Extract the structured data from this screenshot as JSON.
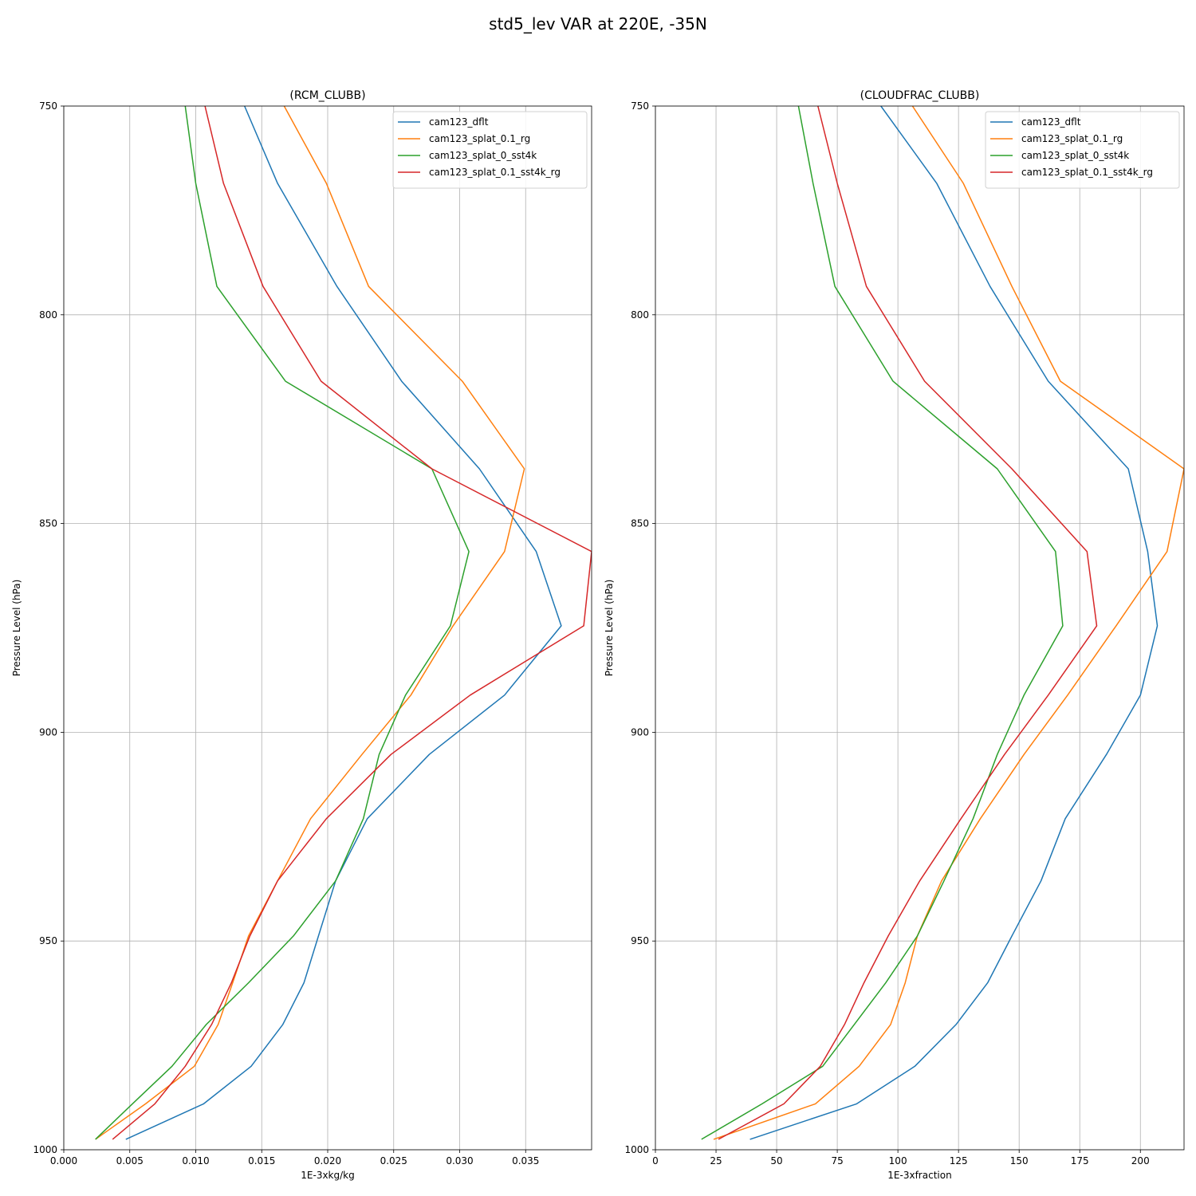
{
  "figure": {
    "suptitle": "std5_lev VAR at 220E, -35N"
  },
  "chart_data": [
    {
      "type": "line",
      "title": "(RCM_CLUBB)",
      "xlabel": "1E-3xkg/kg",
      "ylabel": "Pressure Level (hPa)",
      "xlim": [
        0,
        0.04
      ],
      "ylim": [
        1000,
        750
      ],
      "xticks": [
        0,
        0.005,
        0.01,
        0.015,
        0.02,
        0.025,
        0.03,
        0.035
      ],
      "xtick_labels": [
        "0.000",
        "0.005",
        "0.010",
        "0.015",
        "0.020",
        "0.025",
        "0.030",
        "0.035"
      ],
      "yticks": [
        750,
        800,
        850,
        900,
        950,
        1000
      ],
      "ytick_labels": [
        "750",
        "800",
        "850",
        "900",
        "950",
        "1000"
      ],
      "grid": true,
      "legend_position": "top-right",
      "y": [
        750,
        768.5,
        793.2,
        815.9,
        836.9,
        856.7,
        874.5,
        891.1,
        905.3,
        920.7,
        935.6,
        948.8,
        960.0,
        970.0,
        980.0,
        989.0,
        997.5
      ],
      "series": [
        {
          "name": "cam123_dflt",
          "color": "#1f77b4",
          "values": [
            0.0137,
            0.0162,
            0.0207,
            0.0256,
            0.0315,
            0.0358,
            0.0377,
            0.0334,
            0.0277,
            0.023,
            0.0206,
            0.0193,
            0.0182,
            0.0166,
            0.0142,
            0.0106,
            0.0047
          ]
        },
        {
          "name": "cam123_splat_0.1_rg",
          "color": "#ff7f0e",
          "values": [
            0.0167,
            0.0199,
            0.0231,
            0.0302,
            0.0349,
            0.0334,
            0.0295,
            0.0263,
            0.0226,
            0.0187,
            0.0162,
            0.014,
            0.0128,
            0.0117,
            0.0099,
            0.0062,
            0.0024
          ]
        },
        {
          "name": "cam123_splat_0_sst4k",
          "color": "#2ca02c",
          "values": [
            0.0092,
            0.01,
            0.0116,
            0.0168,
            0.0279,
            0.0307,
            0.0293,
            0.0259,
            0.0239,
            0.0227,
            0.0206,
            0.0174,
            0.014,
            0.0108,
            0.0082,
            0.0052,
            0.0024
          ]
        },
        {
          "name": "cam123_splat_0.1_sst4k_rg",
          "color": "#d62728",
          "values": [
            0.0107,
            0.0121,
            0.0151,
            0.0195,
            0.0279,
            0.04,
            0.0394,
            0.0308,
            0.0248,
            0.0199,
            0.0162,
            0.0141,
            0.0127,
            0.0112,
            0.0092,
            0.0069,
            0.0037
          ]
        }
      ]
    },
    {
      "type": "line",
      "title": "(CLOUDFRAC_CLUBB)",
      "xlabel": "1E-3xfraction",
      "ylabel": "Pressure Level (hPa)",
      "xlim": [
        0,
        218
      ],
      "ylim": [
        1000,
        750
      ],
      "xticks": [
        0,
        25,
        50,
        75,
        100,
        125,
        150,
        175,
        200
      ],
      "xtick_labels": [
        "0",
        "25",
        "50",
        "75",
        "100",
        "125",
        "150",
        "175",
        "200"
      ],
      "yticks": [
        750,
        800,
        850,
        900,
        950,
        1000
      ],
      "ytick_labels": [
        "750",
        "800",
        "850",
        "900",
        "950",
        "1000"
      ],
      "grid": true,
      "legend_position": "top-right",
      "y": [
        750,
        768.5,
        793.2,
        815.9,
        836.9,
        856.7,
        874.5,
        891.1,
        905.3,
        920.7,
        935.6,
        948.8,
        960.0,
        970.0,
        980.0,
        989.0,
        997.5
      ],
      "series": [
        {
          "name": "cam123_dflt",
          "color": "#1f77b4",
          "values": [
            93,
            116,
            138,
            162,
            195,
            203,
            207,
            200,
            186,
            169,
            159,
            147,
            137,
            124,
            107,
            83,
            39
          ]
        },
        {
          "name": "cam123_splat_0.1_rg",
          "color": "#ff7f0e",
          "values": [
            106,
            127,
            147,
            167,
            218,
            211,
            190,
            170,
            152,
            134,
            118,
            108,
            103,
            97,
            84,
            66,
            24
          ]
        },
        {
          "name": "cam123_splat_0_sst4k",
          "color": "#2ca02c",
          "values": [
            59,
            65,
            74,
            98,
            141,
            165,
            168,
            152,
            141,
            131,
            119,
            108,
            95,
            82,
            69,
            44,
            19
          ]
        },
        {
          "name": "cam123_splat_0.1_sst4k_rg",
          "color": "#d62728",
          "values": [
            67,
            75,
            87,
            111,
            147,
            178,
            182,
            162,
            144,
            126,
            109,
            96,
            86,
            78,
            68,
            53,
            26
          ]
        }
      ]
    }
  ]
}
